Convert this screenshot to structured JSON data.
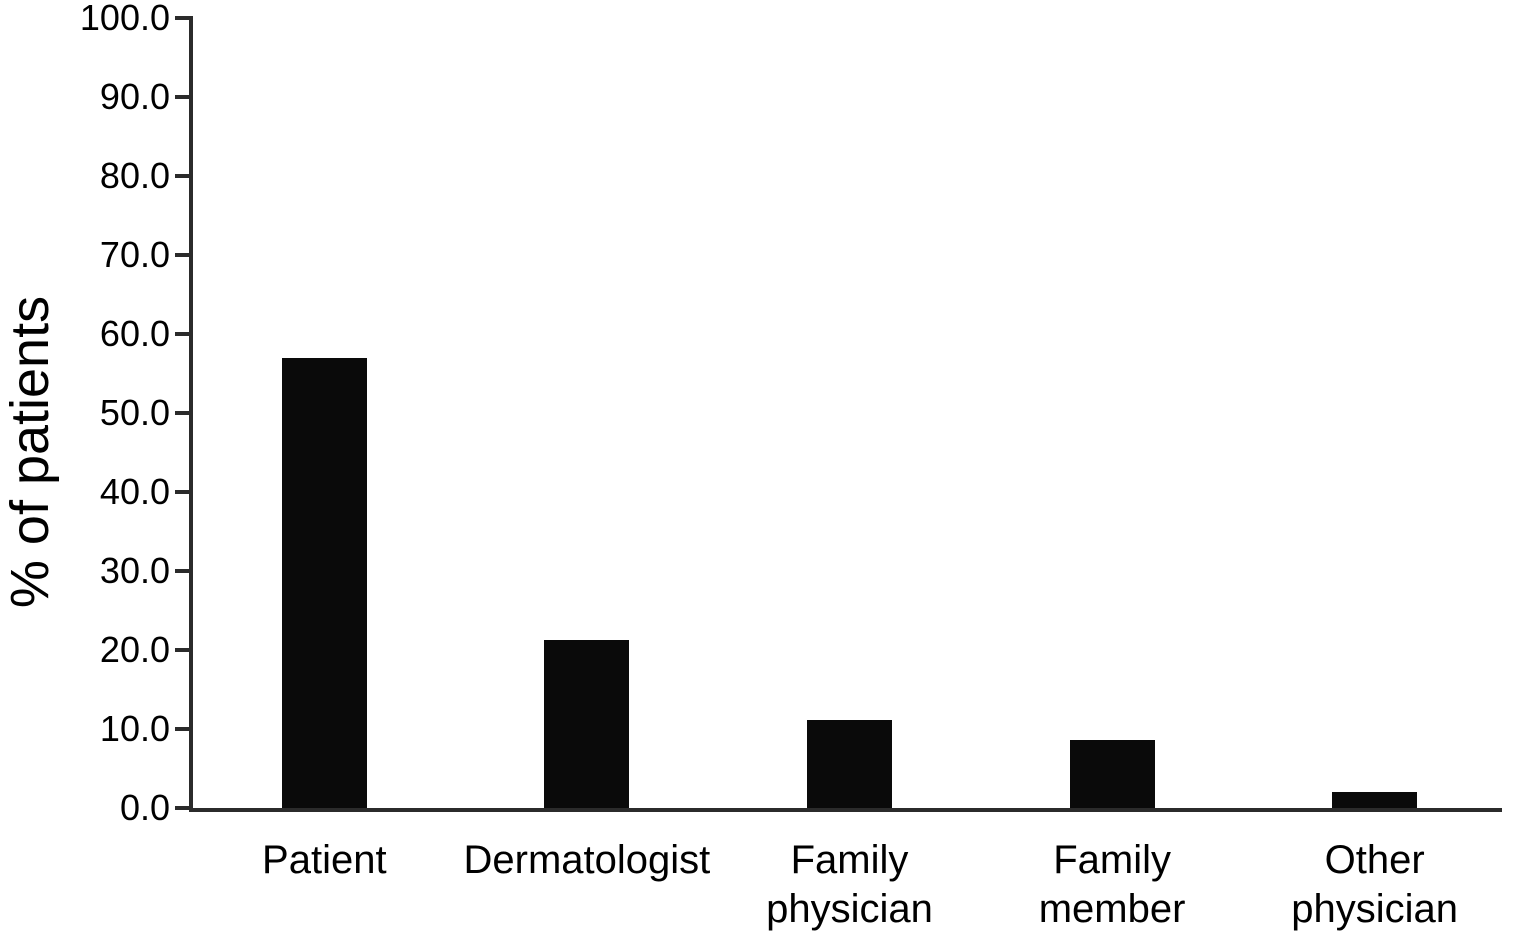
{
  "figure": {
    "background": "#ffffff",
    "bar_color": "#0a0a0a",
    "axis_color": "#2b2b2b",
    "text_color": "#000000"
  },
  "chart_data": {
    "type": "bar",
    "title": "",
    "xlabel": "",
    "ylabel": "% of patients",
    "categories": [
      "Patient",
      "Dermatologist",
      "Family physician",
      "Family member",
      "Other physician"
    ],
    "values": [
      57.0,
      21.3,
      11.2,
      8.6,
      2.0
    ],
    "ylim": [
      0,
      100
    ],
    "ytick_interval": 10,
    "ytick_labels": [
      "100.0",
      "90.0",
      "80.0",
      "70.0",
      "60.0",
      "50.0",
      "40.0",
      "30.0",
      "20.0",
      "10.0",
      "0.0"
    ],
    "grid": false,
    "legend": false,
    "x_labels_display": [
      {
        "line1": "Patient",
        "line2": ""
      },
      {
        "line1": "Dermatologist",
        "line2": ""
      },
      {
        "line1": "Family",
        "line2": "physician"
      },
      {
        "line1": "Family",
        "line2": "member"
      },
      {
        "line1": "Other",
        "line2": "physician"
      }
    ]
  }
}
